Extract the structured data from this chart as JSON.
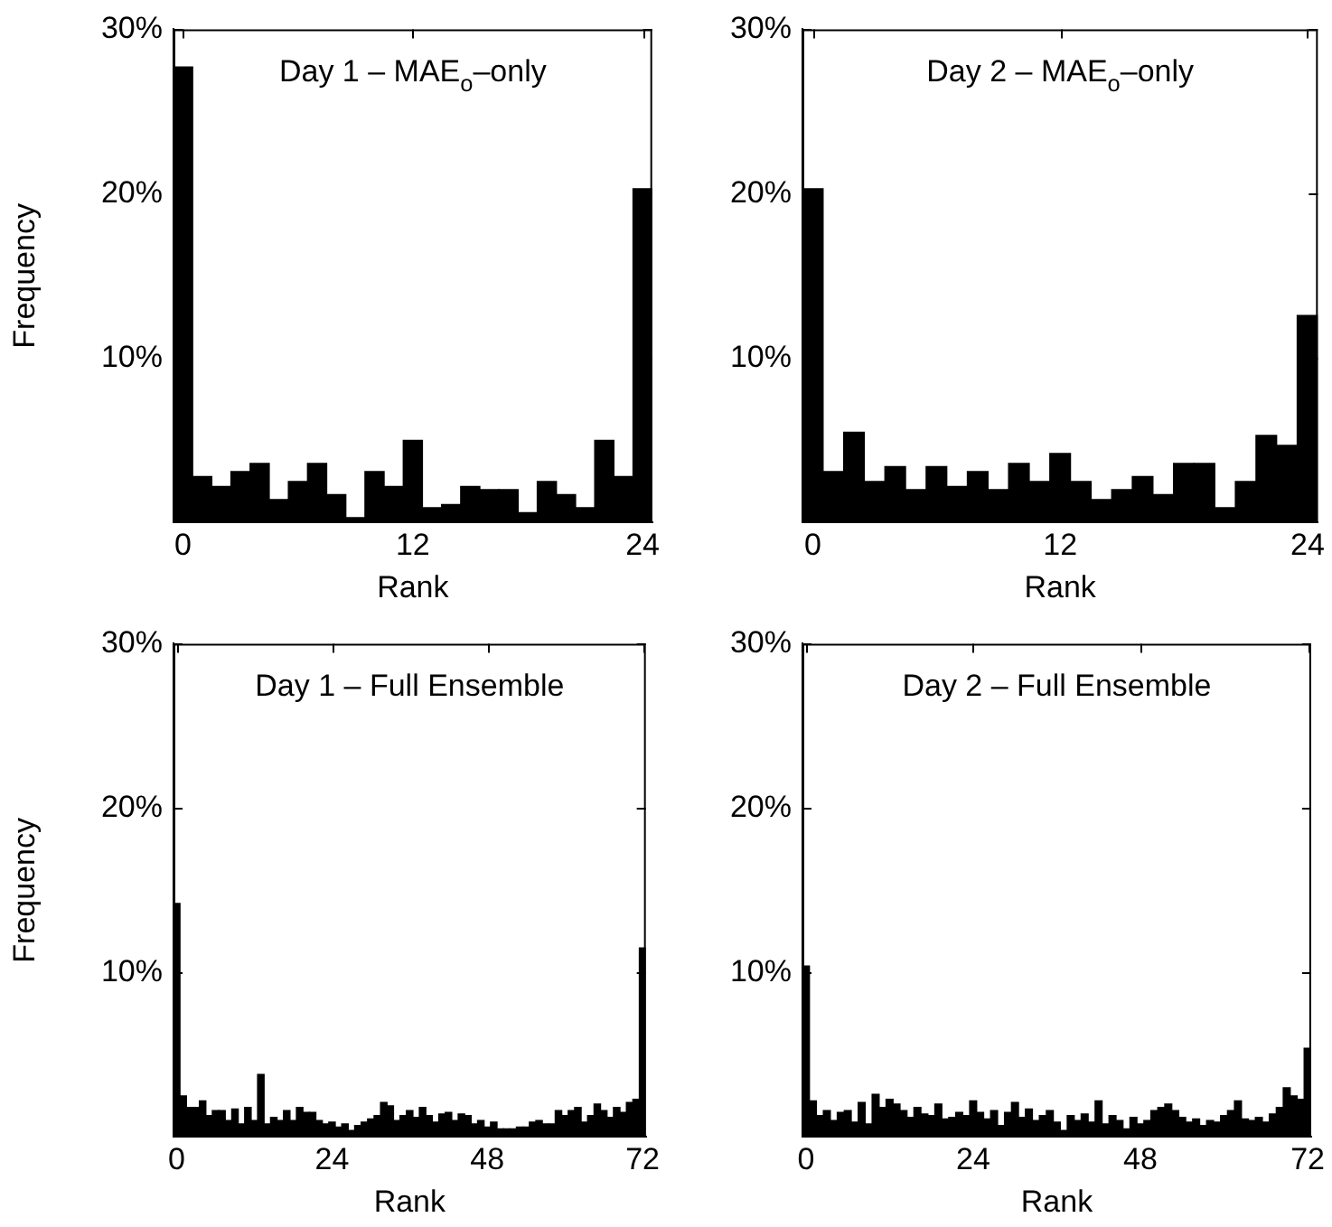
{
  "chart_data": [
    {
      "type": "histogram",
      "title": "Day 1 – MAE$_{o}$–only",
      "xlabel": "Rank",
      "ylabel": "Frequency",
      "color": "#000000",
      "grid": false,
      "legend": false,
      "bins": [
        -0.5,
        0.5,
        1.5,
        2.5,
        3.5,
        4.5,
        5.5,
        6.5,
        7.5,
        8.5,
        9.5,
        10.5,
        11.5,
        12.5,
        13.5,
        14.5,
        15.5,
        16.5,
        17.5,
        18.5,
        19.5,
        20.5,
        21.5,
        22.5,
        23.5,
        24.5
      ],
      "values": [
        27.7,
        2.8,
        2.2,
        3.1,
        3.6,
        1.4,
        2.5,
        3.6,
        1.7,
        0.3,
        3.1,
        2.2,
        5.0,
        0.9,
        1.1,
        2.2,
        2.0,
        2.0,
        0.6,
        2.5,
        1.7,
        0.9,
        5.0,
        2.8,
        20.3
      ],
      "xlim": [
        -0.5,
        24.5
      ],
      "xticks": [
        0,
        12,
        24
      ],
      "ylim": [
        0,
        30
      ],
      "yticks": [
        {
          "value": 10,
          "label": "10%"
        },
        {
          "value": 20,
          "label": "20%"
        },
        {
          "value": 30,
          "label": "30%"
        }
      ]
    },
    {
      "type": "histogram",
      "title": "Day 2 – MAE$_{o}$–only",
      "xlabel": "Rank",
      "color": "#000000",
      "grid": false,
      "legend": false,
      "bins": [
        -0.5,
        0.5,
        1.5,
        2.5,
        3.5,
        4.5,
        5.5,
        6.5,
        7.5,
        8.5,
        9.5,
        10.5,
        11.5,
        12.5,
        13.5,
        14.5,
        15.5,
        16.5,
        17.5,
        18.5,
        19.5,
        20.5,
        21.5,
        22.5,
        23.5,
        24.5
      ],
      "values": [
        20.3,
        3.1,
        5.5,
        2.5,
        3.4,
        2.0,
        3.4,
        2.2,
        3.1,
        2.0,
        3.6,
        2.5,
        4.2,
        2.5,
        1.4,
        2.0,
        2.8,
        1.7,
        3.6,
        3.6,
        0.9,
        2.5,
        5.3,
        4.7,
        12.6
      ],
      "xlim": [
        -0.5,
        24.5
      ],
      "xticks": [
        0,
        12,
        24
      ],
      "ylim": [
        0,
        30
      ],
      "yticks": [
        {
          "value": 10,
          "label": "10%"
        },
        {
          "value": 20,
          "label": "20%"
        },
        {
          "value": 30,
          "label": "30%"
        }
      ]
    },
    {
      "type": "histogram",
      "title": "Day 1 – Full Ensemble",
      "xlabel": "Rank",
      "ylabel": "Frequency",
      "color": "#000000",
      "grid": false,
      "legend": false,
      "bins": [
        -0.5,
        0.5,
        1.5,
        2.5,
        3.5,
        4.5,
        5.5,
        6.5,
        7.5,
        8.5,
        9.5,
        10.5,
        11.5,
        12.5,
        13.5,
        14.5,
        15.5,
        16.5,
        17.5,
        18.5,
        19.5,
        20.5,
        21.5,
        22.5,
        23.5,
        24.5,
        25.5,
        26.5,
        27.5,
        28.5,
        29.5,
        30.5,
        31.5,
        32.5,
        33.5,
        34.5,
        35.5,
        36.5,
        37.5,
        38.5,
        39.5,
        40.5,
        41.5,
        42.5,
        43.5,
        44.5,
        45.5,
        46.5,
        47.5,
        48.5,
        49.5,
        50.5,
        51.5,
        52.5,
        53.5,
        54.5,
        55.5,
        56.5,
        57.5,
        58.5,
        59.5,
        60.5,
        61.5,
        62.5,
        63.5,
        64.5,
        65.5,
        66.5,
        67.5,
        68.5,
        69.5,
        70.5,
        71.5,
        72.5
      ],
      "values": [
        14.2,
        2.5,
        1.8,
        1.8,
        2.2,
        1.3,
        1.6,
        1.6,
        1.0,
        1.7,
        0.8,
        1.8,
        1.0,
        3.8,
        0.8,
        1.2,
        1.0,
        1.6,
        1.0,
        1.8,
        1.5,
        1.5,
        1.0,
        0.8,
        0.9,
        0.6,
        0.8,
        0.4,
        0.7,
        0.9,
        1.1,
        1.3,
        2.1,
        1.9,
        1.0,
        1.3,
        1.6,
        1.2,
        1.8,
        1.3,
        0.9,
        1.4,
        1.5,
        1.0,
        1.4,
        1.3,
        0.8,
        1.0,
        0.6,
        0.9,
        0.5,
        0.5,
        0.5,
        0.6,
        0.6,
        0.9,
        1.0,
        0.8,
        0.8,
        1.6,
        1.3,
        1.6,
        1.8,
        0.9,
        1.3,
        2.0,
        1.6,
        1.2,
        1.8,
        1.5,
        2.1,
        2.3,
        11.5
      ],
      "xlim": [
        -0.5,
        72.5
      ],
      "xticks": [
        0,
        24,
        48,
        72
      ],
      "ylim": [
        0,
        30
      ],
      "yticks": [
        {
          "value": 10,
          "label": "10%"
        },
        {
          "value": 20,
          "label": "20%"
        },
        {
          "value": 30,
          "label": "30%"
        }
      ]
    },
    {
      "type": "histogram",
      "title": "Day 2 – Full Ensemble",
      "xlabel": "Rank",
      "color": "#000000",
      "grid": false,
      "legend": false,
      "bins": [
        -0.5,
        0.5,
        1.5,
        2.5,
        3.5,
        4.5,
        5.5,
        6.5,
        7.5,
        8.5,
        9.5,
        10.5,
        11.5,
        12.5,
        13.5,
        14.5,
        15.5,
        16.5,
        17.5,
        18.5,
        19.5,
        20.5,
        21.5,
        22.5,
        23.5,
        24.5,
        25.5,
        26.5,
        27.5,
        28.5,
        29.5,
        30.5,
        31.5,
        32.5,
        33.5,
        34.5,
        35.5,
        36.5,
        37.5,
        38.5,
        39.5,
        40.5,
        41.5,
        42.5,
        43.5,
        44.5,
        45.5,
        46.5,
        47.5,
        48.5,
        49.5,
        50.5,
        51.5,
        52.5,
        53.5,
        54.5,
        55.5,
        56.5,
        57.5,
        58.5,
        59.5,
        60.5,
        61.5,
        62.5,
        63.5,
        64.5,
        65.5,
        66.5,
        67.5,
        68.5,
        69.5,
        70.5,
        71.5,
        72.5
      ],
      "values": [
        10.4,
        2.2,
        1.3,
        1.6,
        1.0,
        1.5,
        1.6,
        0.9,
        2.1,
        0.8,
        2.6,
        1.8,
        2.3,
        2.0,
        1.6,
        1.2,
        1.8,
        1.4,
        1.3,
        2.0,
        1.1,
        1.2,
        1.5,
        1.3,
        2.2,
        1.5,
        1.1,
        1.6,
        0.7,
        1.5,
        2.1,
        1.2,
        1.7,
        1.0,
        1.3,
        1.6,
        0.9,
        0.4,
        1.3,
        1.0,
        1.4,
        0.9,
        2.2,
        0.8,
        1.3,
        1.0,
        0.5,
        1.2,
        0.8,
        1.0,
        1.6,
        1.8,
        2.0,
        1.6,
        1.2,
        0.9,
        1.1,
        0.7,
        1.0,
        0.9,
        1.3,
        1.6,
        2.2,
        1.1,
        1.0,
        1.2,
        0.9,
        1.4,
        1.8,
        3.0,
        2.5,
        2.3,
        5.4
      ],
      "xlim": [
        -0.5,
        72.5
      ],
      "xticks": [
        0,
        24,
        48,
        72
      ],
      "ylim": [
        0,
        30
      ],
      "yticks": [
        {
          "value": 10,
          "label": "10%"
        },
        {
          "value": 20,
          "label": "20%"
        },
        {
          "value": 30,
          "label": "30%"
        }
      ]
    }
  ]
}
